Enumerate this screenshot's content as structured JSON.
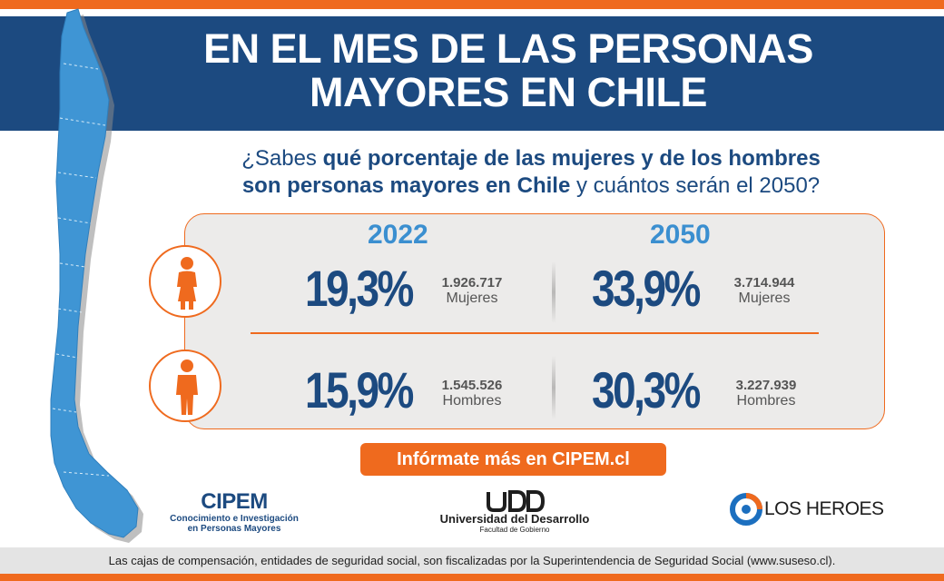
{
  "header": {
    "title_line1": "EN EL MES DE LAS PERSONAS",
    "title_line2": "MAYORES EN CHILE"
  },
  "question": {
    "part1": "¿Sabes ",
    "bold1": "qué porcentaje de las mujeres y de los hombres",
    "bold2": "son personas mayores en Chile",
    "part2": " y cuántos serán el 2050?"
  },
  "years": [
    "2022",
    "2050"
  ],
  "stats": {
    "women": {
      "pct_2022": "19,3%",
      "count_2022": "1.926.717",
      "pct_2050": "33,9%",
      "count_2050": "3.714.944",
      "label": "Mujeres"
    },
    "men": {
      "pct_2022": "15,9%",
      "count_2022": "1.545.526",
      "pct_2050": "30,3%",
      "count_2050": "3.227.939",
      "label": "Hombres"
    }
  },
  "cta": {
    "label": "Infórmate más en CIPEM.cl"
  },
  "logos": {
    "cipem_name": "CIPEM",
    "cipem_sub1": "Conocimiento e Investigación",
    "cipem_sub2": "en Personas Mayores",
    "udd_name": "Universidad del Desarrollo",
    "udd_sub": "Facultad de Gobierno",
    "heroes_name": "LOS HEROES"
  },
  "footer": {
    "text": "Las cajas de compensación, entidades de seguridad social, son fiscalizadas por la Superintendencia de Seguridad Social (www.suseso.cl)."
  },
  "colors": {
    "navy": "#1c4a80",
    "orange": "#ef6a1e",
    "light_blue": "#3b8fd0",
    "panel_gray": "#ecebea",
    "map_blue": "#3f95d4"
  },
  "icons": [
    "woman-icon",
    "man-icon",
    "chile-map",
    "los-heroes-logo-icon",
    "udd-logo-icon"
  ]
}
